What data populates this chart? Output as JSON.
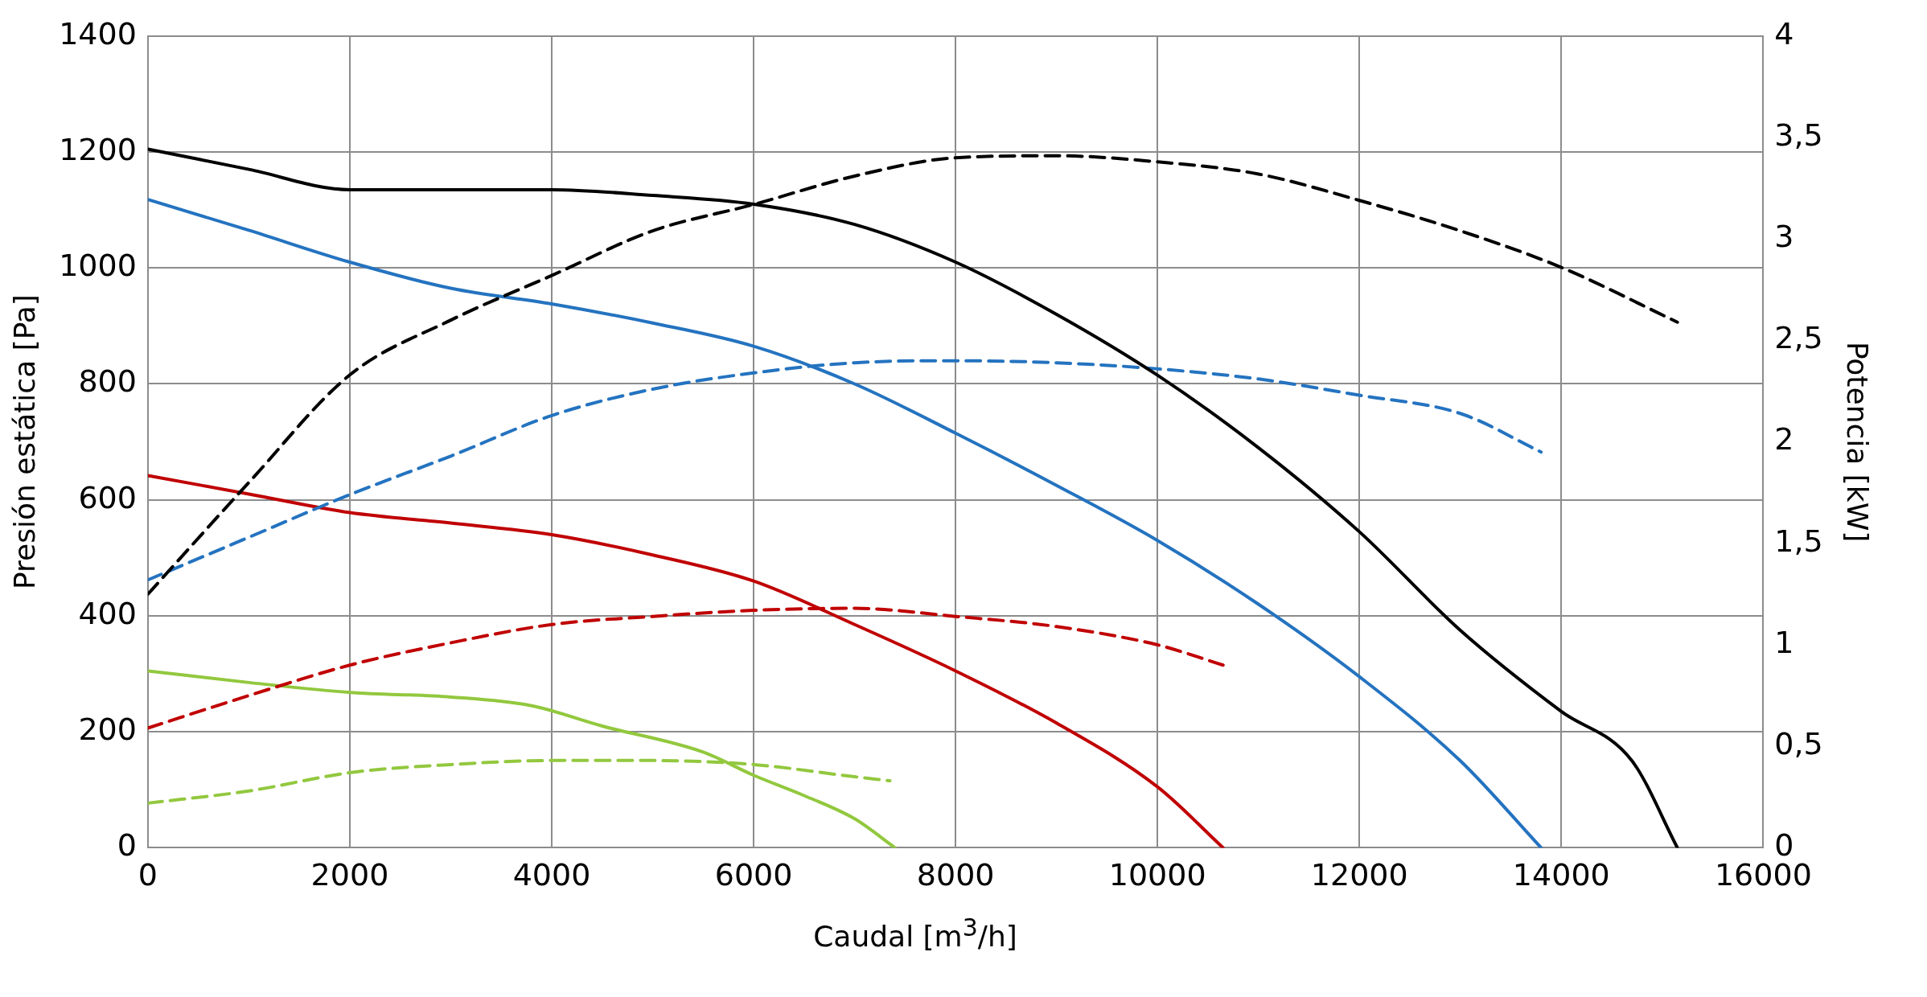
{
  "chart_data": {
    "type": "line",
    "xlabel": "Caudal [m$^{3}$/h]",
    "ylabel": "Presión estática [Pa]",
    "y2label": "Potencia [kW]",
    "xlim": [
      0,
      16000
    ],
    "xticks": [
      0,
      2000,
      4000,
      6000,
      8000,
      10000,
      12000,
      14000,
      16000
    ],
    "ylim": [
      0,
      1400
    ],
    "yticks": [
      0,
      200,
      400,
      600,
      800,
      1000,
      1200,
      1400
    ],
    "y2lim": [
      0,
      4
    ],
    "y2ticks": [
      0,
      {
        "value": 0.5,
        "label": "0,5"
      },
      1,
      {
        "value": 1.5,
        "label": "1,5"
      },
      2,
      {
        "value": 2.5,
        "label": "2,5"
      },
      3,
      {
        "value": 3.5,
        "label": "3,5"
      },
      4
    ],
    "grid": true,
    "legend": false,
    "marker": "none",
    "series": [
      {
        "color": "#000000",
        "line_style": "solid",
        "x": [
          0,
          1000,
          2000,
          3000,
          4000,
          5000,
          6000,
          7000,
          8000,
          9000,
          10000,
          11000,
          12000,
          13000,
          14000,
          14700,
          15150
        ],
        "values": [
          1205,
          1170,
          1135,
          1135,
          1135,
          1125,
          1110,
          1075,
          1010,
          920,
          815,
          690,
          545,
          375,
          235,
          150,
          0
        ]
      },
      {
        "color": "#000000",
        "line_style": "dashed",
        "axis": "y2",
        "x": [
          0,
          1000,
          2000,
          3000,
          4000,
          5000,
          6000,
          7000,
          8000,
          9000,
          10000,
          11000,
          12000,
          13000,
          14000,
          15150
        ],
        "values": [
          1.25,
          1.8,
          2.33,
          2.6,
          2.82,
          3.04,
          3.17,
          3.31,
          3.4,
          3.41,
          3.38,
          3.32,
          3.19,
          3.04,
          2.86,
          2.59
        ]
      },
      {
        "color": "#2473c0",
        "line_style": "solid",
        "x": [
          0,
          1000,
          2000,
          3000,
          4000,
          5000,
          6000,
          7000,
          8000,
          9000,
          10000,
          11000,
          12000,
          13000,
          13800
        ],
        "values": [
          1118,
          1065,
          1010,
          965,
          938,
          905,
          865,
          800,
          715,
          625,
          530,
          420,
          295,
          150,
          0
        ]
      },
      {
        "color": "#2473c0",
        "line_style": "dashed",
        "axis": "y2",
        "x": [
          0,
          1000,
          2000,
          3000,
          4000,
          5000,
          6000,
          7000,
          8000,
          9000,
          10000,
          11000,
          12000,
          13000,
          13800
        ],
        "values": [
          1.32,
          1.53,
          1.74,
          1.93,
          2.13,
          2.26,
          2.34,
          2.39,
          2.4,
          2.39,
          2.36,
          2.31,
          2.23,
          2.14,
          1.95
        ]
      },
      {
        "color": "#c00000",
        "line_style": "solid",
        "x": [
          0,
          1000,
          2000,
          3000,
          4000,
          5000,
          6000,
          7000,
          8000,
          9000,
          10000,
          10650
        ],
        "values": [
          642,
          610,
          578,
          560,
          540,
          505,
          460,
          385,
          305,
          215,
          105,
          0
        ]
      },
      {
        "color": "#c00000",
        "line_style": "dashed",
        "axis": "y2",
        "x": [
          0,
          1000,
          2000,
          3000,
          4000,
          5000,
          6000,
          7000,
          8000,
          9000,
          10000,
          10650
        ],
        "values": [
          0.59,
          0.75,
          0.9,
          1.01,
          1.1,
          1.14,
          1.17,
          1.18,
          1.14,
          1.09,
          1.0,
          0.9
        ]
      },
      {
        "color": "#92c83e",
        "line_style": "solid",
        "x": [
          0,
          1000,
          2000,
          3000,
          3800,
          4500,
          5500,
          6000,
          6500,
          7000,
          7400
        ],
        "values": [
          305,
          285,
          268,
          260,
          245,
          210,
          165,
          125,
          90,
          50,
          0
        ]
      },
      {
        "color": "#92c83e",
        "line_style": "dashed",
        "axis": "y2",
        "x": [
          0,
          1000,
          2000,
          3000,
          4000,
          5000,
          6000,
          7000,
          7350
        ],
        "values": [
          0.22,
          0.28,
          0.37,
          0.41,
          0.43,
          0.43,
          0.41,
          0.35,
          0.33
        ]
      }
    ]
  }
}
